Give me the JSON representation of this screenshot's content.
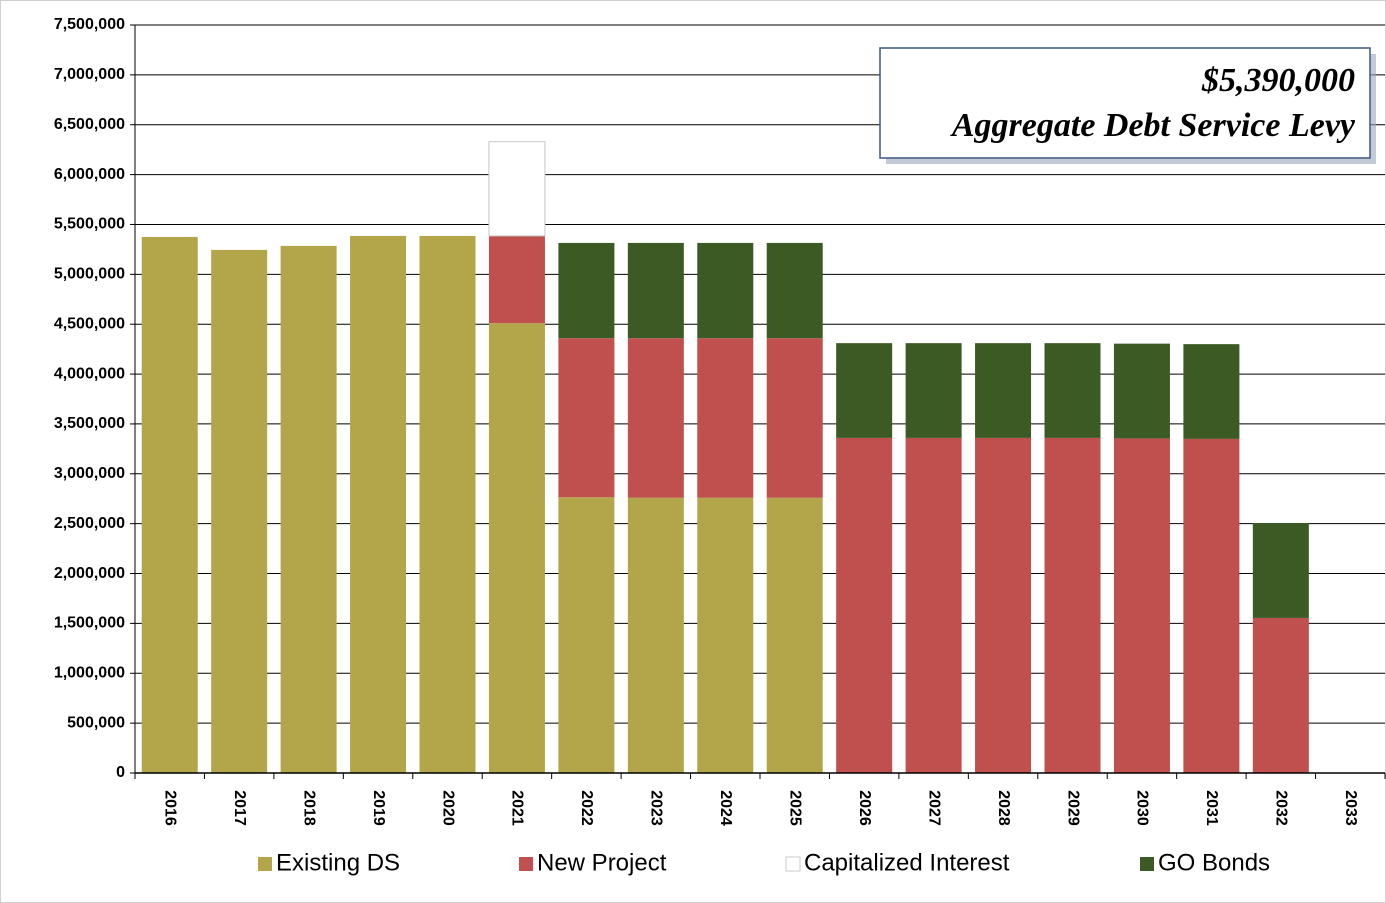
{
  "chart_data": {
    "type": "stacked_bar",
    "categories": [
      "2016",
      "2017",
      "2018",
      "2019",
      "2020",
      "2021",
      "2022",
      "2023",
      "2024",
      "2025",
      "2026",
      "2027",
      "2028",
      "2029",
      "2030",
      "2031",
      "2032",
      "2033"
    ],
    "series": [
      {
        "name": "Existing DS",
        "color": "#b3a64a",
        "values": [
          5375000,
          5245000,
          5285000,
          5385000,
          5385000,
          4510000,
          2765000,
          2760000,
          2760000,
          2760000,
          0,
          0,
          0,
          0,
          0,
          0,
          0,
          0
        ]
      },
      {
        "name": "New Project",
        "color": "#c0504d",
        "values": [
          0,
          0,
          0,
          0,
          0,
          875000,
          1595000,
          1600000,
          1600000,
          1600000,
          3360000,
          3360000,
          3360000,
          3360000,
          3355000,
          3350000,
          1555000,
          0
        ]
      },
      {
        "name": "Capitalized Interest",
        "color": "#ffffff",
        "values": [
          0,
          0,
          0,
          0,
          0,
          945000,
          0,
          0,
          0,
          0,
          0,
          0,
          0,
          0,
          0,
          0,
          0,
          0
        ]
      },
      {
        "name": "GO Bonds",
        "color": "#3b5a24",
        "values": [
          0,
          0,
          0,
          0,
          0,
          0,
          955000,
          955000,
          955000,
          955000,
          950000,
          950000,
          950000,
          950000,
          950000,
          950000,
          950000,
          0
        ]
      }
    ],
    "ylim": [
      0,
      7500000
    ],
    "yticks": [
      0,
      {
        "value": 500000,
        "label": "500,000"
      },
      {
        "value": 1000000,
        "label": "1,000,000"
      },
      {
        "value": 1500000,
        "label": "1,500,000"
      },
      {
        "value": 2000000,
        "label": "2,000,000"
      },
      {
        "value": 2500000,
        "label": "2,500,000"
      },
      {
        "value": 3000000,
        "label": "3,000,000"
      },
      {
        "value": 3500000,
        "label": "3,500,000"
      },
      {
        "value": 4000000,
        "label": "4,000,000"
      },
      {
        "value": 4500000,
        "label": "4,500,000"
      },
      {
        "value": 5000000,
        "label": "5,000,000"
      },
      {
        "value": 5500000,
        "label": "5,500,000"
      },
      {
        "value": 6000000,
        "label": "6,000,000"
      },
      {
        "value": 6500000,
        "label": "6,500,000"
      },
      {
        "value": 7000000,
        "label": "7,000,000"
      },
      {
        "value": 7500000,
        "label": "7,500,000"
      }
    ],
    "grid": true,
    "legend": "bottom",
    "annotations": [
      "$5,390,000",
      "Aggregate Debt Service Levy"
    ]
  }
}
